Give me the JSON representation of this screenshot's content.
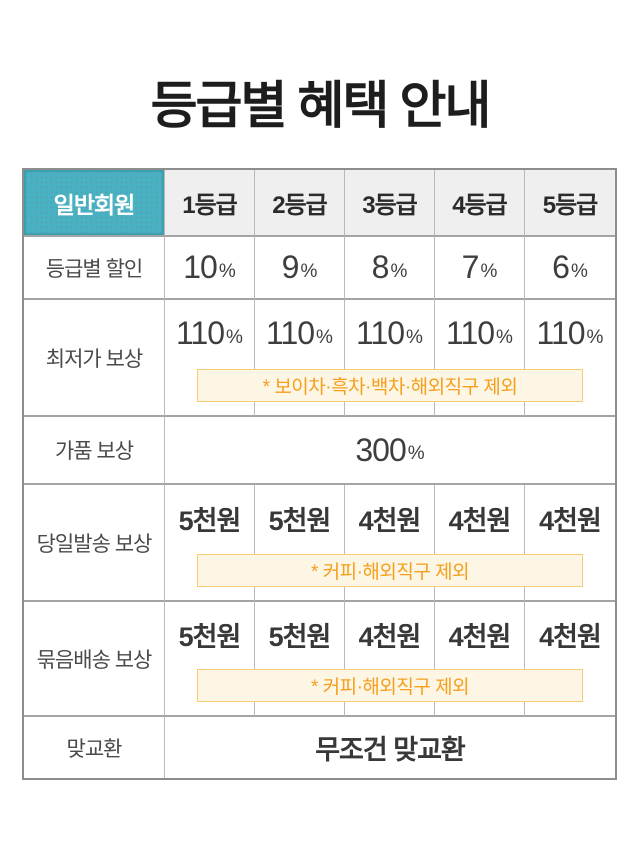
{
  "title": "등급별 혜택 안내",
  "table": {
    "header": {
      "member_type": "일반회원",
      "grades": [
        "1등급",
        "2등급",
        "3등급",
        "4등급",
        "5등급"
      ]
    },
    "rows": {
      "discount": {
        "label": "등급별 할인",
        "values": [
          {
            "num": "10",
            "unit": "%"
          },
          {
            "num": "9",
            "unit": "%"
          },
          {
            "num": "8",
            "unit": "%"
          },
          {
            "num": "7",
            "unit": "%"
          },
          {
            "num": "6",
            "unit": "%"
          }
        ]
      },
      "lowest_price": {
        "label": "최저가 보상",
        "values": [
          {
            "num": "110",
            "unit": "%"
          },
          {
            "num": "110",
            "unit": "%"
          },
          {
            "num": "110",
            "unit": "%"
          },
          {
            "num": "110",
            "unit": "%"
          },
          {
            "num": "110",
            "unit": "%"
          }
        ],
        "note": "* 보이차·흑차·백차·해외직구 제외"
      },
      "counterfeit": {
        "label": "가품 보상",
        "value": {
          "num": "300",
          "unit": "%"
        }
      },
      "same_day_shipping": {
        "label": "당일발송 보상",
        "values": [
          "5천원",
          "5천원",
          "4천원",
          "4천원",
          "4천원"
        ],
        "note": "* 커피·해외직구 제외"
      },
      "bundle_shipping": {
        "label": "묶음배송 보상",
        "values": [
          "5천원",
          "5천원",
          "4천원",
          "4천원",
          "4천원"
        ],
        "note": "* 커피·해외직구 제외"
      },
      "exchange": {
        "label": "맞교환",
        "value": "무조건 맞교환"
      }
    }
  },
  "colors": {
    "accent_teal": "#49B2C2",
    "teal_border": "#3AA0B0",
    "header_gray": "#EFEFEF",
    "grid_line_horizontal": "#A4A4A4",
    "grid_line_vertical": "#BABABA",
    "note_text": "#F59F1E",
    "note_border": "#F7CA74",
    "note_background": "#FDF6E4",
    "text_dark": "#3A3A3A"
  }
}
